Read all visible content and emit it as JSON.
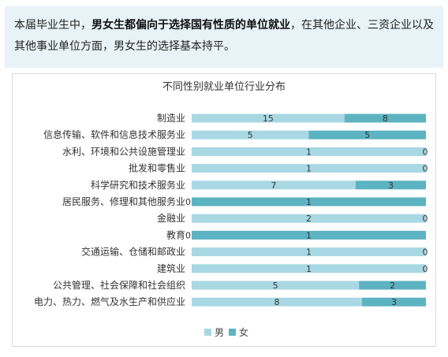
{
  "intro": {
    "p1": "本届毕业生中，",
    "bold": "男女生都偏向于选择国有性质的单位就业",
    "p2": "，在其他企业、三资企业以及其他事业单位方面，男女生的选择基本持平。"
  },
  "colors": {
    "male": "#a8d8e3",
    "female": "#5cb3c1"
  },
  "chart_data": {
    "type": "bar",
    "orientation": "horizontal",
    "stacked": "100%",
    "title": "不同性别就业单位行业分布",
    "categories": [
      "制造业",
      "信息传输、软件和信息技术服务业",
      "水利、环境和公共设施管理业",
      "批发和零售业",
      "科学研究和技术服务业",
      "居民服务、修理和其他服务业",
      "金融业",
      "教育",
      "交通运输、仓储和邮政业",
      "建筑业",
      "公共管理、社会保障和社会组织",
      "电力、热力、燃气及水生产和供应业"
    ],
    "series": [
      {
        "name": "男",
        "values": [
          15,
          5,
          1,
          1,
          7,
          0,
          2,
          0,
          1,
          1,
          5,
          8
        ]
      },
      {
        "name": "女",
        "values": [
          8,
          5,
          0,
          0,
          3,
          1,
          0,
          1,
          0,
          0,
          2,
          3
        ]
      }
    ],
    "legend_position": "bottom",
    "grid": false
  }
}
